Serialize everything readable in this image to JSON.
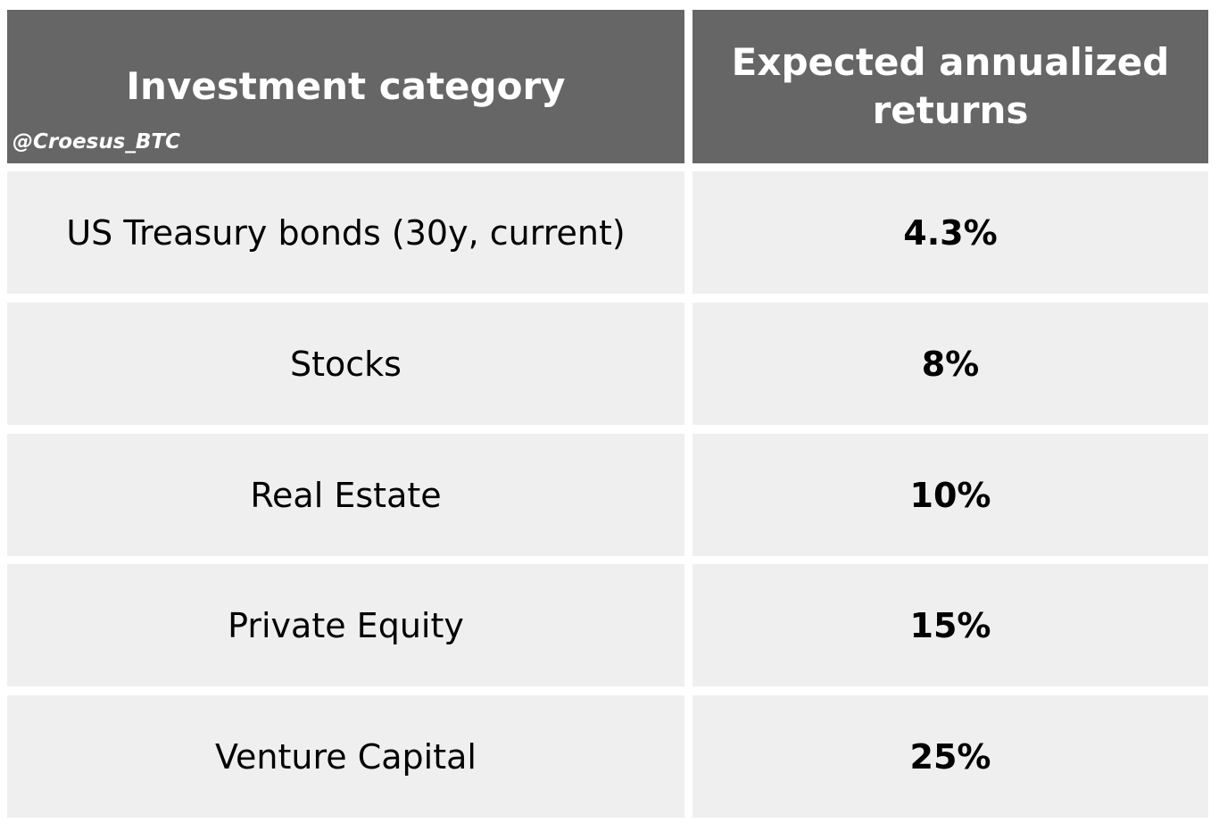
{
  "watermark": "@Croesus_BTC",
  "table": {
    "headers": [
      "Investment category",
      "Expected annualized returns"
    ],
    "rows": [
      {
        "category": "US Treasury bonds (30y, current)",
        "return": "4.3%"
      },
      {
        "category": "Stocks",
        "return": "8%"
      },
      {
        "category": "Real Estate",
        "return": "10%"
      },
      {
        "category": "Private Equity",
        "return": "15%"
      },
      {
        "category": "Venture Capital",
        "return": "25%"
      }
    ]
  },
  "colors": {
    "header_bg": "#666666",
    "header_text": "#ffffff",
    "cell_bg": "#efefef",
    "cell_text": "#000000"
  }
}
